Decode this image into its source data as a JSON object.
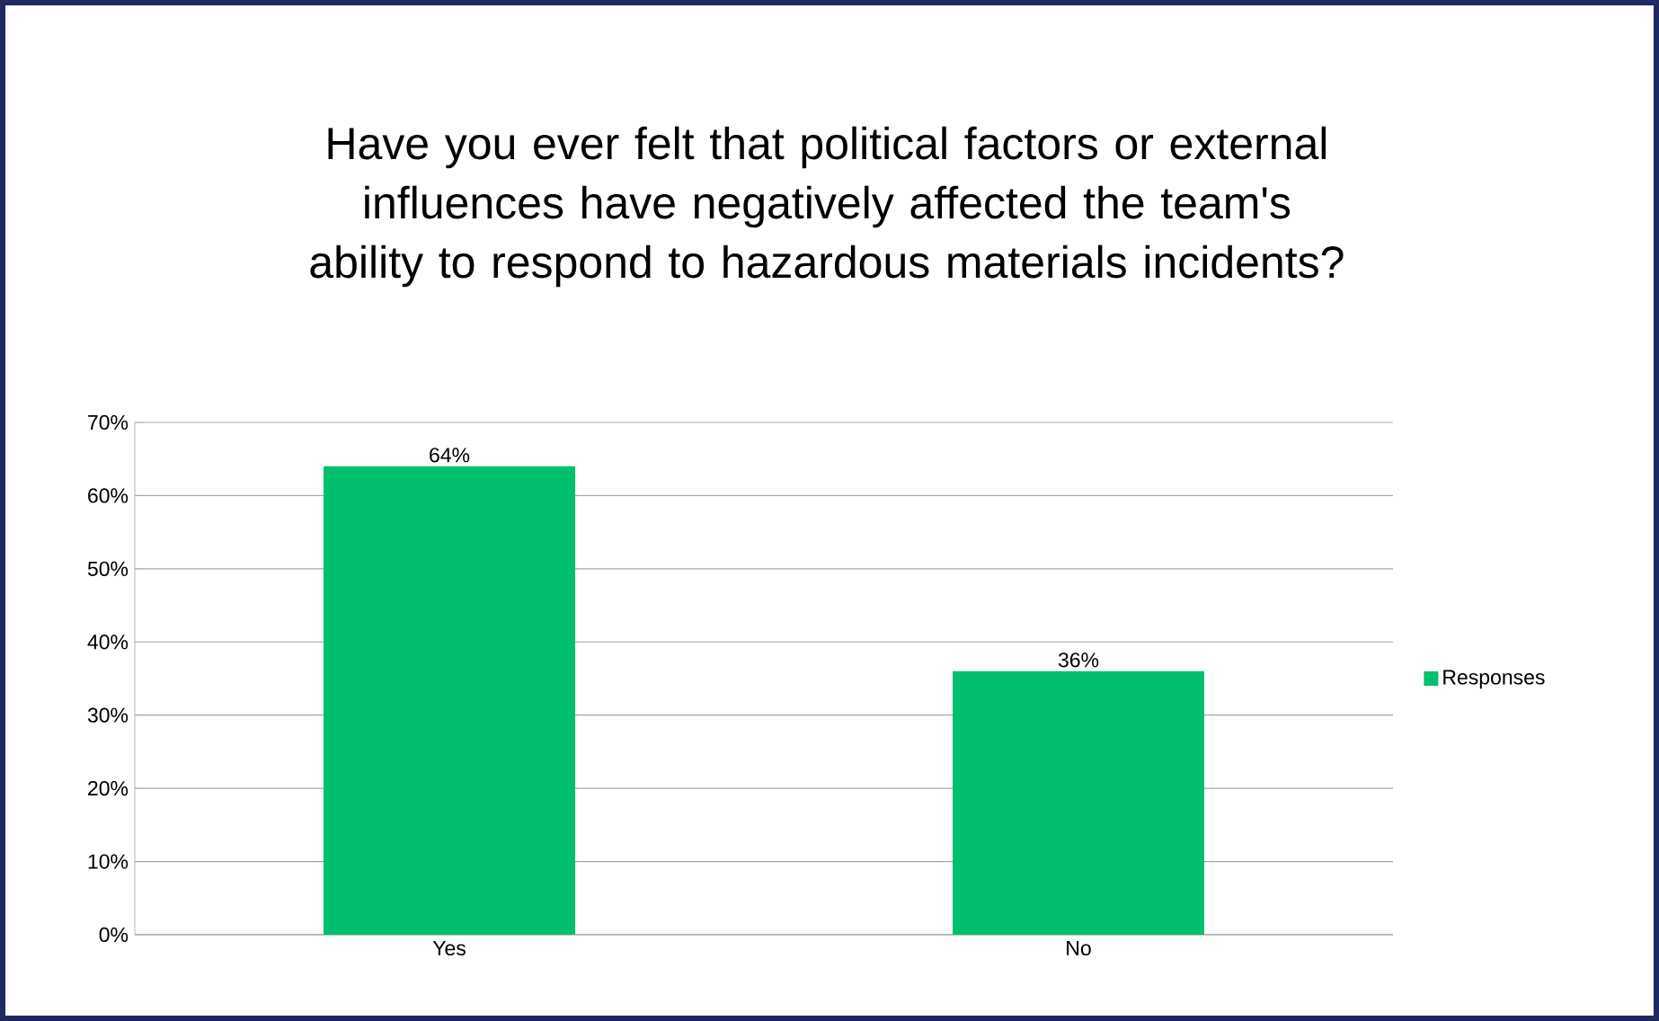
{
  "chart_data": {
    "type": "bar",
    "title": "Have you ever felt that political factors or external influences have negatively affected the team's ability to respond to hazardous materials incidents?",
    "categories": [
      "Yes",
      "No"
    ],
    "series": [
      {
        "name": "Responses",
        "color": "#00c06e",
        "values": [
          64,
          36
        ],
        "value_labels": [
          "64%",
          "36%"
        ]
      }
    ],
    "ylim": [
      0,
      70
    ],
    "yticks": [
      {
        "value": 0,
        "label": "0%"
      },
      {
        "value": 10,
        "label": "10%"
      },
      {
        "value": 20,
        "label": "20%"
      },
      {
        "value": 30,
        "label": "30%"
      },
      {
        "value": 40,
        "label": "40%"
      },
      {
        "value": 50,
        "label": "50%"
      },
      {
        "value": 60,
        "label": "60%"
      },
      {
        "value": 70,
        "label": "70%"
      }
    ],
    "grid": "y",
    "legend": "right"
  }
}
